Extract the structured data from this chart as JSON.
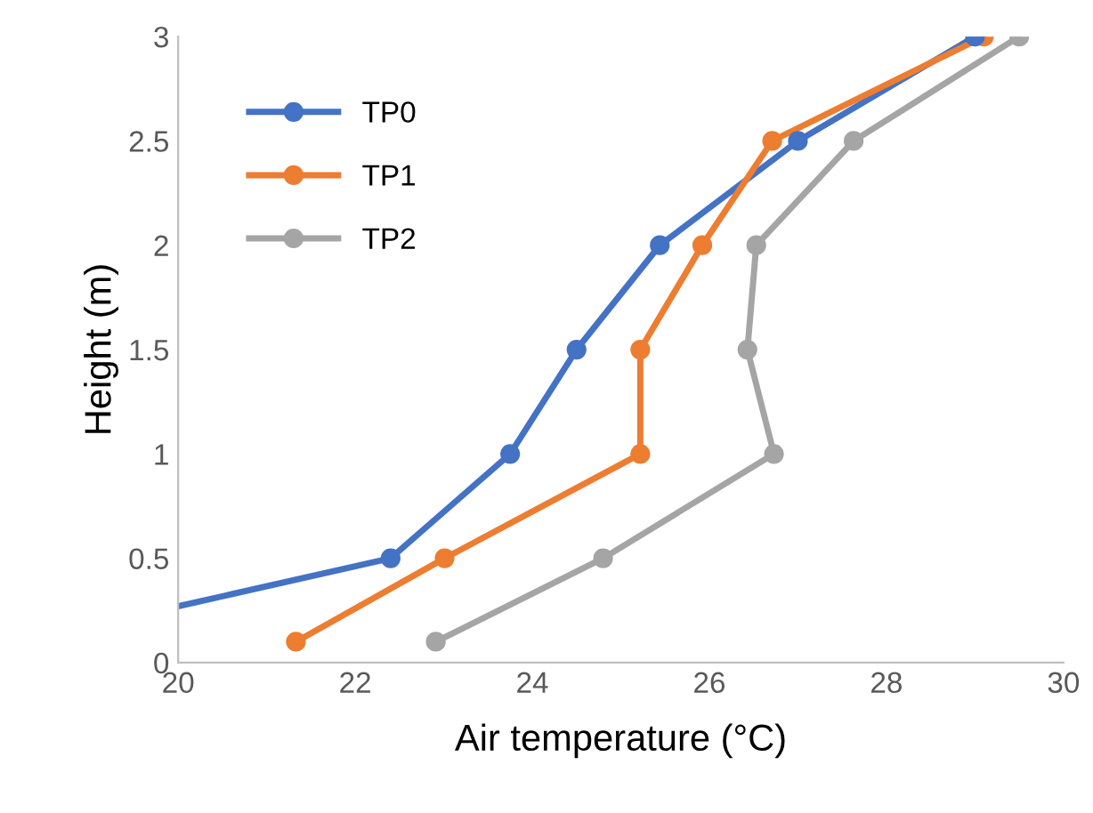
{
  "chart_data": {
    "type": "line",
    "xlabel": "Air temperature (°C)",
    "ylabel": "Height (m)",
    "series": [
      {
        "name": "TP0",
        "color": "#4472c4",
        "x": [
          20,
          22.4,
          23.75,
          24.5,
          25.44,
          27.0,
          29.0
        ],
        "values": [
          0.27,
          0.5,
          1,
          1.5,
          2,
          2.5,
          3
        ]
      },
      {
        "name": "TP1",
        "color": "#ed7d31",
        "x": [
          21.33,
          23.01,
          25.22,
          25.22,
          25.92,
          26.71,
          29.1
        ],
        "values": [
          0.1,
          0.5,
          1,
          1.5,
          2,
          2.5,
          3
        ]
      },
      {
        "name": "TP2",
        "color": "#a5a5a5",
        "x": [
          22.91,
          24.8,
          26.73,
          26.43,
          26.53,
          27.63,
          29.5
        ],
        "values": [
          0.1,
          0.5,
          1,
          1.5,
          2,
          2.5,
          3
        ]
      }
    ],
    "xlim": [
      20,
      30
    ],
    "xticks": [
      20,
      22,
      24,
      26,
      28,
      30
    ],
    "ylim": [
      0,
      3
    ],
    "yticks": [
      0,
      0.5,
      1,
      1.5,
      2,
      2.5,
      3
    ],
    "grid": false,
    "legend": "top left",
    "marker": "circle",
    "line_style": "solid"
  }
}
